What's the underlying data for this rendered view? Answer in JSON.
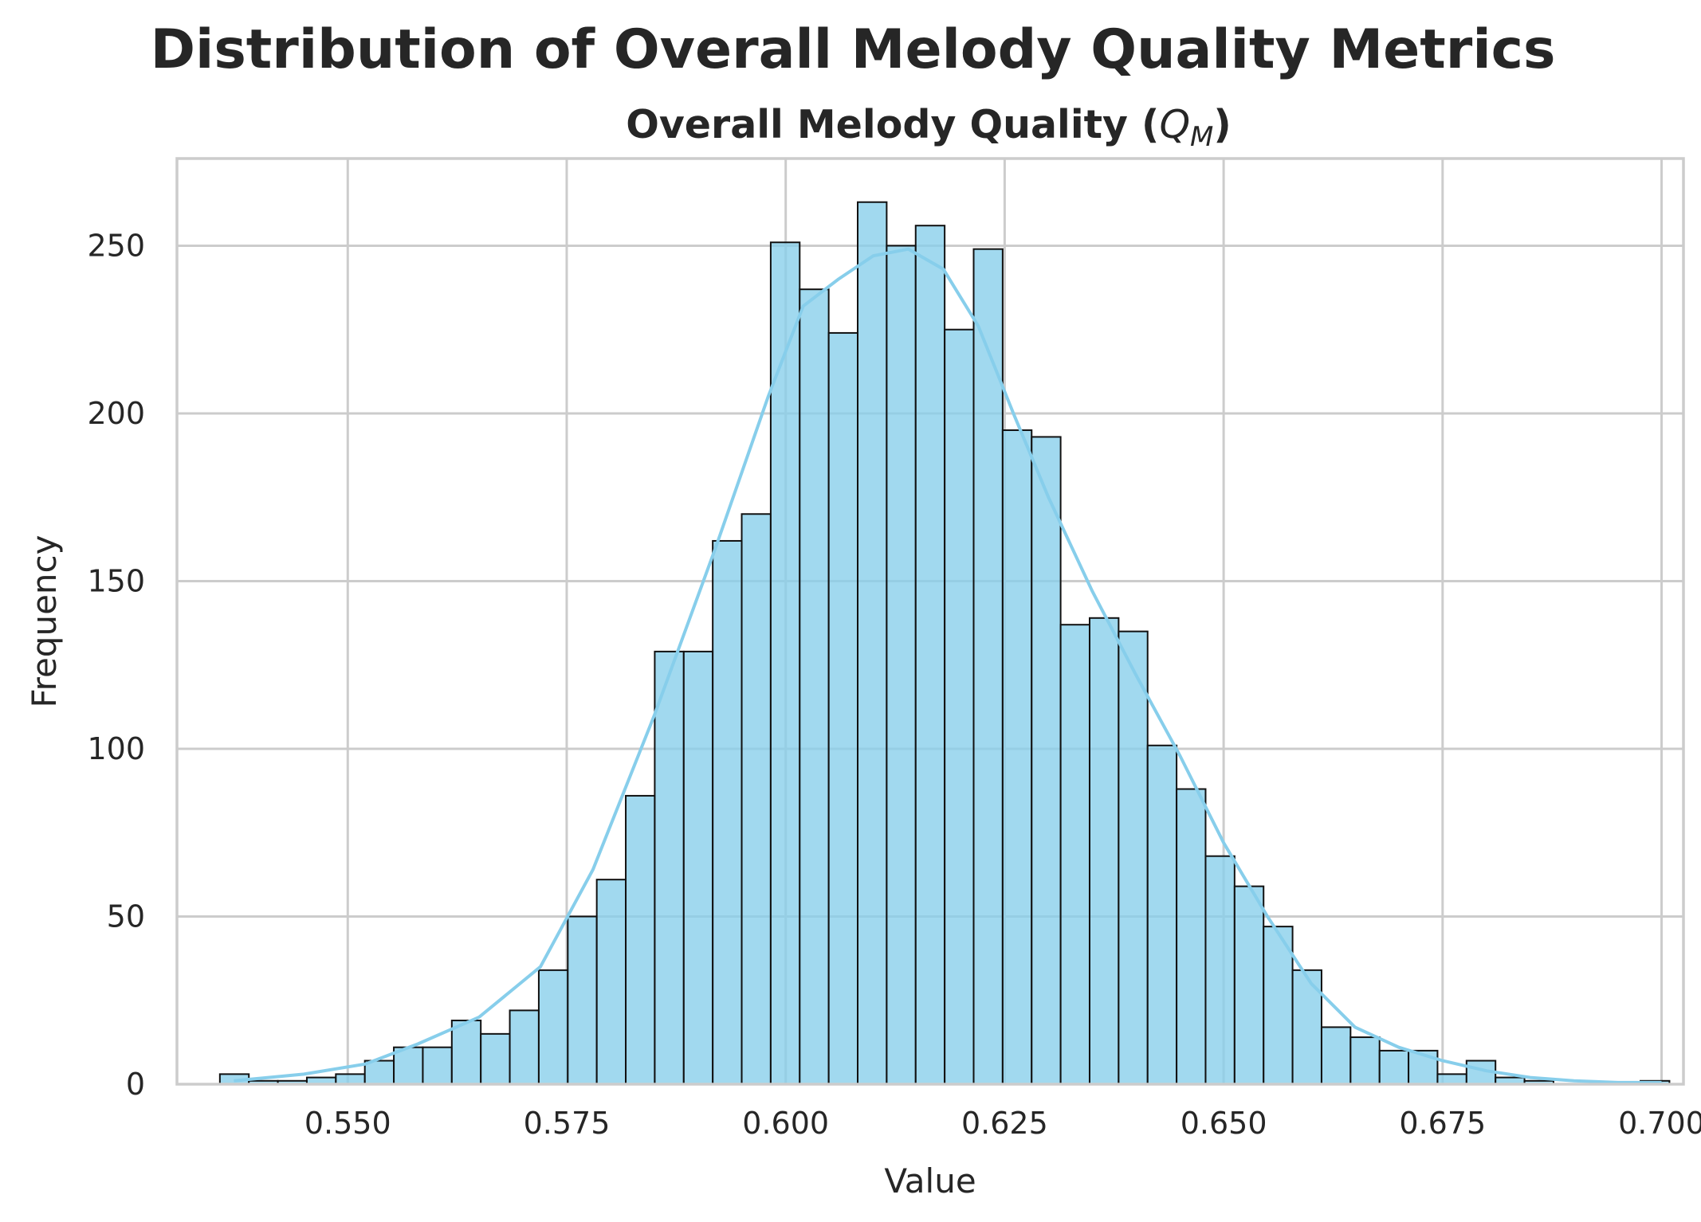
{
  "suptitle": "Distribution of Overall Melody Quality Metrics",
  "chart_data": {
    "type": "bar",
    "subtype": "histogram_with_kde",
    "title_text": "Overall Melody Quality (",
    "title_symbol": "Q",
    "title_subscript": "M",
    "title_close": ")",
    "xlabel": "Value",
    "ylabel": "Frequency",
    "xlim": [
      0.5305,
      0.7025
    ],
    "ylim": [
      0,
      276
    ],
    "xticks": [
      0.55,
      0.575,
      0.6,
      0.625,
      0.65,
      0.675,
      0.7
    ],
    "xtick_labels": [
      "0.550",
      "0.575",
      "0.600",
      "0.625",
      "0.650",
      "0.675",
      "0.700"
    ],
    "yticks": [
      0,
      50,
      100,
      150,
      200,
      250
    ],
    "ytick_labels": [
      "0",
      "50",
      "100",
      "150",
      "200",
      "250"
    ],
    "bin_start": 0.5354,
    "bin_width": 0.00331,
    "counts": [
      3,
      1,
      1,
      2,
      3,
      7,
      11,
      11,
      19,
      15,
      22,
      34,
      50,
      61,
      86,
      129,
      129,
      162,
      170,
      251,
      237,
      224,
      263,
      250,
      256,
      225,
      249,
      195,
      193,
      137,
      139,
      135,
      101,
      88,
      68,
      59,
      47,
      34,
      17,
      14,
      10,
      10,
      3,
      7,
      2,
      1,
      0,
      0,
      0,
      1
    ],
    "kde": {
      "x": [
        0.537,
        0.545,
        0.552,
        0.558,
        0.565,
        0.572,
        0.578,
        0.585,
        0.592,
        0.598,
        0.602,
        0.606,
        0.61,
        0.614,
        0.618,
        0.622,
        0.626,
        0.63,
        0.635,
        0.64,
        0.645,
        0.65,
        0.655,
        0.66,
        0.665,
        0.67,
        0.675,
        0.68,
        0.685,
        0.69,
        0.695,
        0.7
      ],
      "y": [
        1,
        3,
        6,
        12,
        20,
        35,
        64,
        110,
        160,
        205,
        232,
        240,
        247,
        249,
        243,
        226,
        200,
        175,
        147,
        122,
        98,
        72,
        50,
        30,
        17,
        11,
        7,
        4,
        2,
        1,
        0.5,
        0.5
      ]
    },
    "bar_color": "#87ceeb",
    "edge_color": "#111111",
    "grid": true,
    "legend": false
  }
}
